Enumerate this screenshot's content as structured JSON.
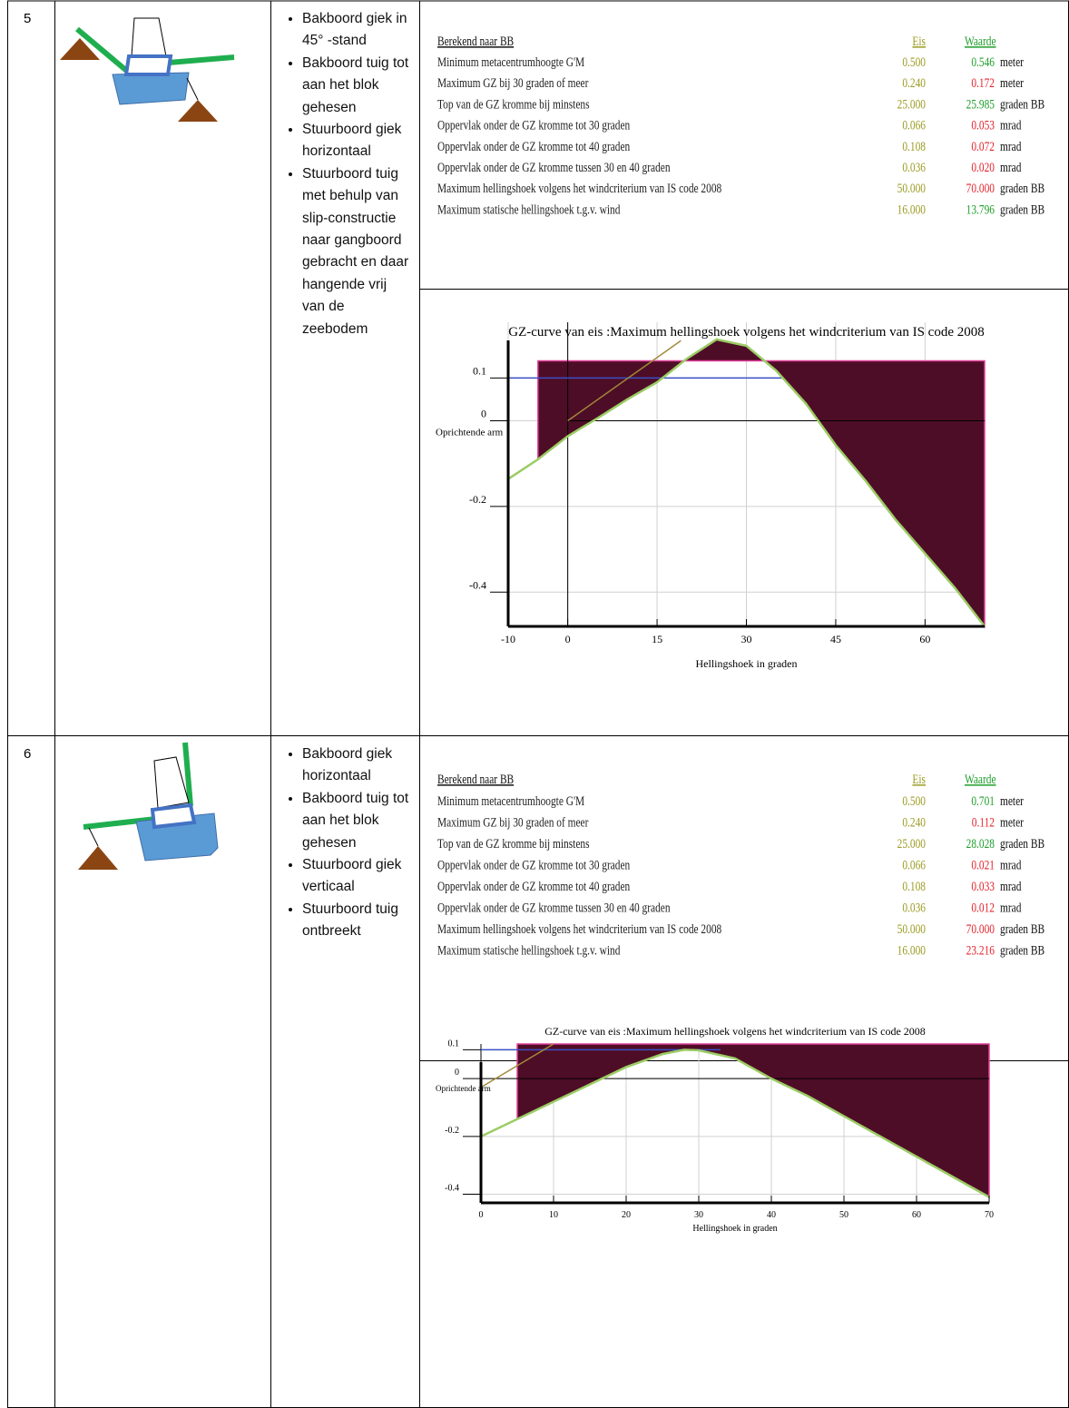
{
  "rows": [
    {
      "number": "5",
      "bullets": [
        "Bakboord giek in 45° -stand",
        "Bakboord tuig tot aan het blok gehesen",
        "Stuurboord giek horizontaal",
        "Stuurboord tuig met behulp van slip-constructie naar gangboord gebracht en daar hangende vrij van de zeebodem"
      ],
      "table": {
        "header": [
          "Berekend naar BB",
          "Eis",
          "Waarde"
        ],
        "rows": [
          {
            "label": "Minimum metacentrumhoogte G'M",
            "eis": "0.500",
            "waarde": "0.546",
            "unit": "meter",
            "color": "#1e9e2a"
          },
          {
            "label": "Maximum GZ bij 30 graden of meer",
            "eis": "0.240",
            "waarde": "0.172",
            "unit": "meter",
            "color": "#e3232c"
          },
          {
            "label": "Top van de GZ kromme bij minstens",
            "eis": "25.000",
            "waarde": "25.985",
            "unit": "graden BB",
            "color": "#1e9e2a"
          },
          {
            "label": "Oppervlak onder de GZ kromme tot 30 graden",
            "eis": "0.066",
            "waarde": "0.053",
            "unit": "mrad",
            "color": "#e3232c"
          },
          {
            "label": "Oppervlak onder de GZ kromme tot 40 graden",
            "eis": "0.108",
            "waarde": "0.072",
            "unit": "mrad",
            "color": "#e3232c"
          },
          {
            "label": "Oppervlak onder de GZ kromme tussen 30 en 40 graden",
            "eis": "0.036",
            "waarde": "0.020",
            "unit": "mrad",
            "color": "#e3232c"
          },
          {
            "label": "Maximum hellingshoek volgens het windcriterium van IS code 2008",
            "eis": "50.000",
            "waarde": "70.000",
            "unit": "graden BB",
            "color": "#e3232c"
          },
          {
            "label": "Maximum statische hellingshoek t.g.v. wind",
            "eis": "16.000",
            "waarde": "13.796",
            "unit": "graden BB",
            "color": "#1e9e2a"
          }
        ]
      }
    },
    {
      "number": "6",
      "bullets": [
        "Bakboord giek horizontaal",
        "Bakboord tuig tot aan het blok gehesen",
        "Stuurboord giek verticaal",
        "Stuurboord tuig ontbreekt"
      ],
      "table": {
        "header": [
          "Berekend naar BB",
          "Eis",
          "Waarde"
        ],
        "rows": [
          {
            "label": "Minimum metacentrumhoogte G'M",
            "eis": "0.500",
            "waarde": "0.701",
            "unit": "meter",
            "color": "#1e9e2a"
          },
          {
            "label": "Maximum GZ bij 30 graden of meer",
            "eis": "0.240",
            "waarde": "0.112",
            "unit": "meter",
            "color": "#e3232c"
          },
          {
            "label": "Top van de GZ kromme bij minstens",
            "eis": "25.000",
            "waarde": "28.028",
            "unit": "graden BB",
            "color": "#1e9e2a"
          },
          {
            "label": "Oppervlak onder de GZ kromme tot 30 graden",
            "eis": "0.066",
            "waarde": "0.021",
            "unit": "mrad",
            "color": "#e3232c"
          },
          {
            "label": "Oppervlak onder de GZ kromme tot 40 graden",
            "eis": "0.108",
            "waarde": "0.033",
            "unit": "mrad",
            "color": "#e3232c"
          },
          {
            "label": "Oppervlak onder de GZ kromme tussen 30 en 40 graden",
            "eis": "0.036",
            "waarde": "0.012",
            "unit": "mrad",
            "color": "#e3232c"
          },
          {
            "label": "Maximum hellingshoek volgens het windcriterium van IS code 2008",
            "eis": "50.000",
            "waarde": "70.000",
            "unit": "graden BB",
            "color": "#e3232c"
          },
          {
            "label": "Maximum statische hellingshoek t.g.v. wind",
            "eis": "16.000",
            "waarde": "23.216",
            "unit": "graden BB",
            "color": "#e3232c"
          }
        ]
      }
    }
  ],
  "chart_data": [
    {
      "type": "line",
      "title": "GZ-curve van eis :Maximum hellingshoek volgens het windcriterium van IS code 2008",
      "xlabel": "Hellingshoek in graden",
      "ylabel": "Oprichtende arm",
      "x": [
        -10,
        -5,
        0,
        5,
        10,
        15,
        20,
        25,
        30,
        35,
        40,
        45,
        50,
        55,
        60,
        65,
        70
      ],
      "values": [
        -0.136,
        -0.09,
        -0.036,
        0.006,
        0.05,
        0.09,
        0.145,
        0.19,
        0.175,
        0.117,
        0.04,
        -0.057,
        -0.14,
        -0.23,
        -0.31,
        -0.39,
        -0.48
      ],
      "color": "#9ccc65",
      "xlim": [
        -10,
        70
      ],
      "ylim": [
        -0.48,
        0.23
      ],
      "xticks": [
        -10,
        0,
        15,
        30,
        45,
        60
      ],
      "yticks": [
        0.1,
        0,
        -0.2,
        -0.4
      ],
      "grid": true,
      "fill": {
        "x": [
          -5,
          70
        ],
        "top": 0.14,
        "color": "#4e0d26"
      },
      "hline": {
        "y": 0.1,
        "x": [
          -10,
          36
        ],
        "color": "#3a4fc4"
      },
      "tangent": {
        "x": [
          0,
          19
        ],
        "y": [
          0,
          0.187
        ],
        "color": "#a08a3a"
      }
    },
    {
      "type": "line",
      "title": "GZ-curve van eis :Maximum hellingshoek volgens het windcriterium van IS code 2008",
      "xlabel": "Hellingshoek in graden",
      "ylabel": "Oprichtende arm",
      "x": [
        0,
        5,
        10,
        15,
        20,
        25,
        28,
        30,
        35,
        40,
        45,
        50,
        55,
        60,
        65,
        70
      ],
      "values": [
        -0.2,
        -0.14,
        -0.08,
        -0.02,
        0.04,
        0.085,
        0.1,
        0.098,
        0.07,
        0.0,
        -0.06,
        -0.13,
        -0.2,
        -0.27,
        -0.34,
        -0.41
      ],
      "color": "#9ccc65",
      "xlim": [
        0,
        70
      ],
      "ylim": [
        -0.43,
        0.12
      ],
      "xticks": [
        0,
        10,
        20,
        30,
        40,
        50,
        60,
        70
      ],
      "yticks": [
        0.1,
        0,
        -0.2,
        -0.4
      ],
      "grid": true,
      "fill": {
        "x": [
          5,
          70
        ],
        "top": 0.12,
        "color": "#4e0d26"
      },
      "hline": {
        "y": 0.1,
        "x": [
          0,
          33
        ],
        "color": "#3a4fc4"
      },
      "tangent": {
        "x": [
          0,
          10
        ],
        "y": [
          -0.03,
          0.12
        ],
        "color": "#a08a3a"
      }
    }
  ]
}
